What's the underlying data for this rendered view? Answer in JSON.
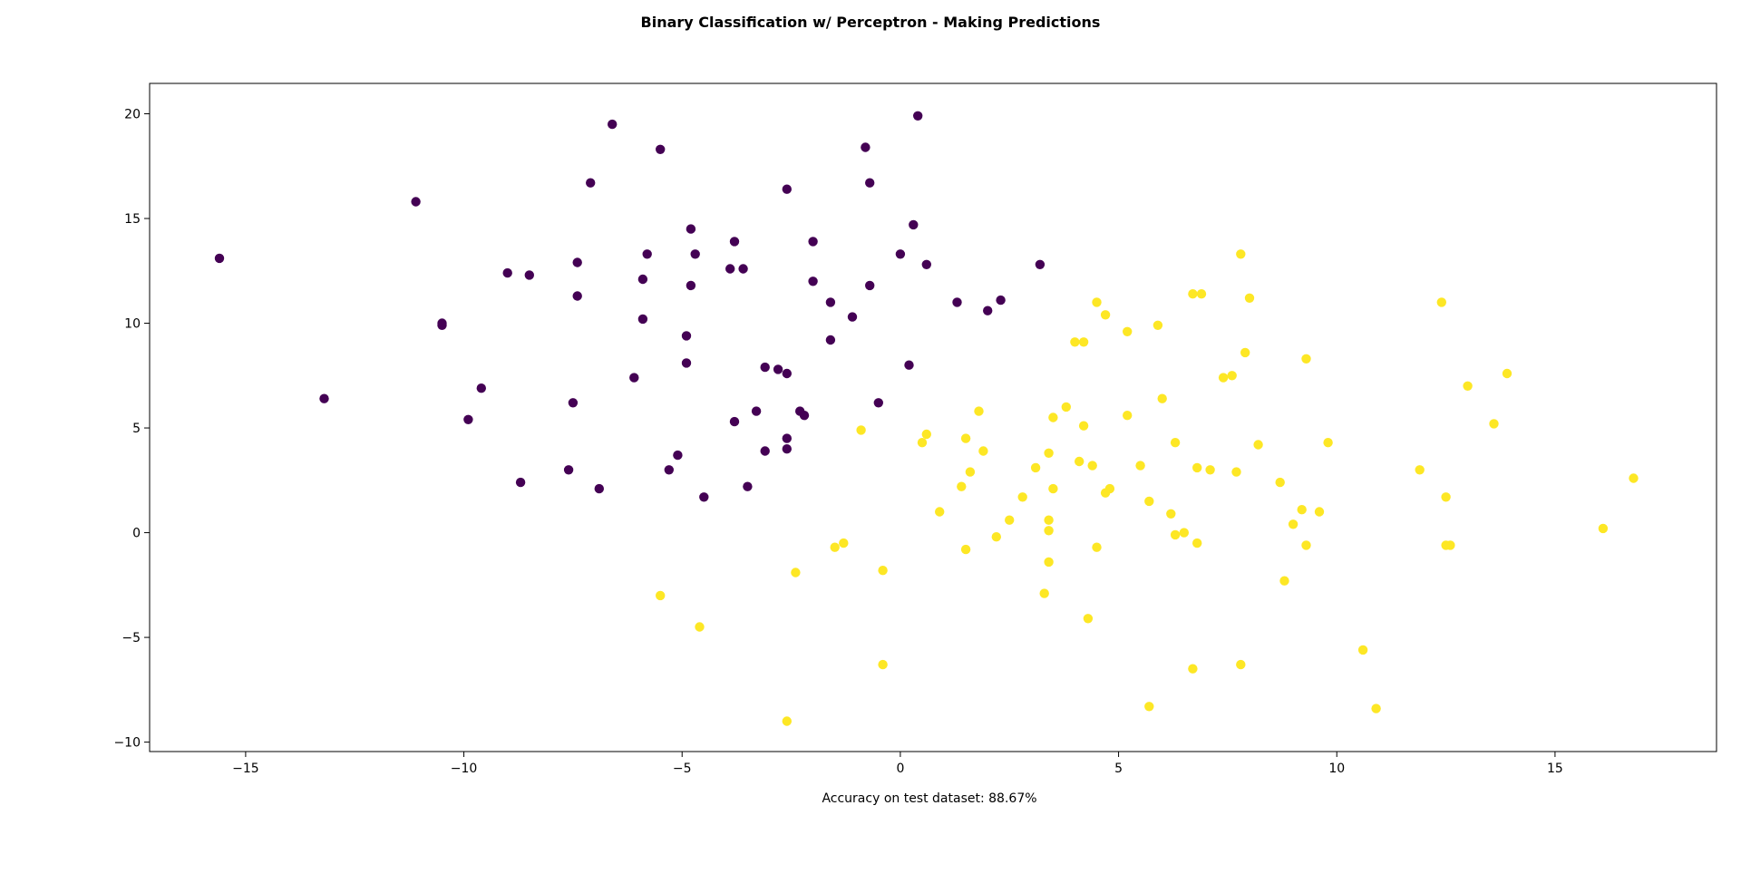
{
  "chart_data": {
    "type": "scatter",
    "title": "Binary Classification w/ Perceptron - Making Predictions",
    "xlabel": "Accuracy on test dataset: 88.67%",
    "ylabel": "",
    "xlim": [
      -17.2,
      18.7
    ],
    "ylim": [
      -10.45,
      21.45
    ],
    "xticks": [
      -15,
      -10,
      -5,
      0,
      5,
      10,
      15
    ],
    "yticks": [
      -10,
      -5,
      0,
      5,
      10,
      15,
      20
    ],
    "xtick_labels": [
      "−15",
      "−10",
      "−5",
      "0",
      "5",
      "10",
      "15"
    ],
    "ytick_labels": [
      "−10",
      "−5",
      "0",
      "5",
      "10",
      "15",
      "20"
    ],
    "grid": false,
    "colors": {
      "class0": "#440154",
      "class1": "#fde725"
    },
    "series": [
      {
        "class": 0,
        "points": [
          [
            -15.6,
            13.1
          ],
          [
            -13.2,
            6.4
          ],
          [
            -11.1,
            15.8
          ],
          [
            -10.5,
            10.0
          ],
          [
            -10.5,
            9.9
          ],
          [
            -9.9,
            5.4
          ],
          [
            -9.6,
            6.9
          ],
          [
            -9.0,
            12.4
          ],
          [
            -8.7,
            2.4
          ],
          [
            -8.5,
            12.3
          ],
          [
            -7.6,
            3.0
          ],
          [
            -7.5,
            6.2
          ],
          [
            -7.4,
            11.3
          ],
          [
            -7.4,
            12.9
          ],
          [
            -7.1,
            16.7
          ],
          [
            -6.9,
            2.1
          ],
          [
            -6.6,
            19.5
          ],
          [
            -6.1,
            7.4
          ],
          [
            -5.9,
            10.2
          ],
          [
            -5.9,
            12.1
          ],
          [
            -5.8,
            13.3
          ],
          [
            -5.5,
            18.3
          ],
          [
            -5.3,
            3.0
          ],
          [
            -5.1,
            3.7
          ],
          [
            -4.9,
            9.4
          ],
          [
            -4.9,
            8.1
          ],
          [
            -4.8,
            14.5
          ],
          [
            -4.8,
            11.8
          ],
          [
            -4.7,
            13.3
          ],
          [
            -4.5,
            1.7
          ],
          [
            -3.9,
            12.6
          ],
          [
            -3.8,
            13.9
          ],
          [
            -3.8,
            5.3
          ],
          [
            -3.6,
            12.6
          ],
          [
            -3.5,
            2.2
          ],
          [
            -3.3,
            5.8
          ],
          [
            -3.1,
            7.9
          ],
          [
            -3.1,
            3.9
          ],
          [
            -2.8,
            7.8
          ],
          [
            -2.6,
            7.6
          ],
          [
            -2.6,
            4.0
          ],
          [
            -2.6,
            4.5
          ],
          [
            -2.6,
            16.4
          ],
          [
            -2.3,
            5.8
          ],
          [
            -2.2,
            5.6
          ],
          [
            -2.0,
            13.9
          ],
          [
            -2.0,
            12.0
          ],
          [
            -1.6,
            11.0
          ],
          [
            -1.6,
            9.2
          ],
          [
            -1.1,
            10.3
          ],
          [
            -0.8,
            18.4
          ],
          [
            -0.7,
            16.7
          ],
          [
            -0.7,
            11.8
          ],
          [
            -0.5,
            6.2
          ],
          [
            0.0,
            13.3
          ],
          [
            0.2,
            8.0
          ],
          [
            0.3,
            14.7
          ],
          [
            0.4,
            19.9
          ],
          [
            0.6,
            12.8
          ],
          [
            1.3,
            11.0
          ],
          [
            2.0,
            10.6
          ],
          [
            2.3,
            11.1
          ],
          [
            3.2,
            12.8
          ]
        ]
      },
      {
        "class": 1,
        "points": [
          [
            -5.5,
            -3.0
          ],
          [
            -4.6,
            -4.5
          ],
          [
            -2.6,
            -9.0
          ],
          [
            -2.4,
            -1.9
          ],
          [
            -1.5,
            -0.7
          ],
          [
            -1.3,
            -0.5
          ],
          [
            -0.9,
            4.9
          ],
          [
            -0.4,
            -6.3
          ],
          [
            -0.4,
            -1.8
          ],
          [
            0.5,
            4.3
          ],
          [
            0.6,
            4.7
          ],
          [
            0.9,
            1.0
          ],
          [
            1.4,
            2.2
          ],
          [
            1.5,
            4.5
          ],
          [
            1.5,
            -0.8
          ],
          [
            1.6,
            2.9
          ],
          [
            1.8,
            5.8
          ],
          [
            1.9,
            3.9
          ],
          [
            2.2,
            -0.2
          ],
          [
            2.5,
            0.6
          ],
          [
            2.8,
            1.7
          ],
          [
            3.1,
            3.1
          ],
          [
            3.3,
            -2.9
          ],
          [
            3.4,
            3.8
          ],
          [
            3.4,
            0.6
          ],
          [
            3.4,
            0.1
          ],
          [
            3.4,
            -1.4
          ],
          [
            3.5,
            5.5
          ],
          [
            3.5,
            2.1
          ],
          [
            3.8,
            6.0
          ],
          [
            4.0,
            9.1
          ],
          [
            4.1,
            3.4
          ],
          [
            4.2,
            9.1
          ],
          [
            4.2,
            5.1
          ],
          [
            4.3,
            -4.1
          ],
          [
            4.4,
            3.2
          ],
          [
            4.5,
            11.0
          ],
          [
            4.5,
            -0.7
          ],
          [
            4.7,
            1.9
          ],
          [
            4.7,
            10.4
          ],
          [
            4.8,
            2.1
          ],
          [
            5.2,
            9.6
          ],
          [
            5.2,
            5.6
          ],
          [
            5.5,
            3.2
          ],
          [
            5.7,
            1.5
          ],
          [
            5.7,
            -8.3
          ],
          [
            5.9,
            9.9
          ],
          [
            6.0,
            6.4
          ],
          [
            6.2,
            0.9
          ],
          [
            6.3,
            4.3
          ],
          [
            6.3,
            -0.1
          ],
          [
            6.5,
            0.0
          ],
          [
            6.7,
            11.4
          ],
          [
            6.7,
            -6.5
          ],
          [
            6.8,
            3.1
          ],
          [
            6.8,
            -0.5
          ],
          [
            6.9,
            11.4
          ],
          [
            7.1,
            3.0
          ],
          [
            7.4,
            7.4
          ],
          [
            7.6,
            7.5
          ],
          [
            7.7,
            2.9
          ],
          [
            7.8,
            13.3
          ],
          [
            7.8,
            -6.3
          ],
          [
            7.9,
            8.6
          ],
          [
            8.0,
            11.2
          ],
          [
            8.2,
            4.2
          ],
          [
            8.7,
            2.4
          ],
          [
            8.8,
            -2.3
          ],
          [
            9.0,
            0.4
          ],
          [
            9.2,
            1.1
          ],
          [
            9.3,
            -0.6
          ],
          [
            9.3,
            8.3
          ],
          [
            9.6,
            1.0
          ],
          [
            9.8,
            4.3
          ],
          [
            10.6,
            -5.6
          ],
          [
            10.9,
            -8.4
          ],
          [
            11.9,
            3.0
          ],
          [
            12.4,
            11.0
          ],
          [
            12.5,
            1.7
          ],
          [
            12.5,
            -0.6
          ],
          [
            12.6,
            -0.6
          ],
          [
            13.0,
            7.0
          ],
          [
            13.6,
            5.2
          ],
          [
            13.9,
            7.6
          ],
          [
            16.1,
            0.2
          ],
          [
            16.8,
            2.6
          ]
        ]
      }
    ]
  }
}
